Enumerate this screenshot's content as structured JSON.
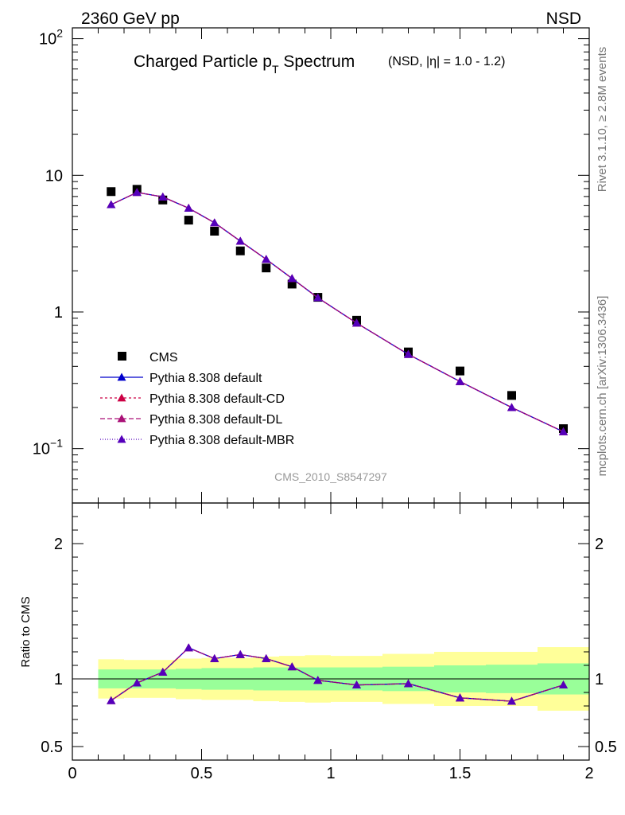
{
  "header": {
    "energy_label": "2360 GeV pp",
    "process_label": "NSD"
  },
  "side_labels": {
    "rivet": "Rivet 3.1.10, ≥ 2.8M events",
    "source": "mcplots.cern.ch [arXiv:1306.3436]"
  },
  "chart_data": {
    "type": "scatter",
    "title_main": "Charged Particle p",
    "title_sub": "T",
    "title_main2": " Spectrum",
    "title_note": "(NSD, |η| = 1.0 - 1.2)",
    "analysis_id": "CMS_2010_S8547297",
    "x": [
      0.15,
      0.25,
      0.35,
      0.45,
      0.55,
      0.65,
      0.75,
      0.85,
      0.95,
      1.1,
      1.3,
      1.5,
      1.7,
      1.9
    ],
    "xlim": [
      0,
      2
    ],
    "xticks": [
      {
        "v": 0,
        "label": "0"
      },
      {
        "v": 0.5,
        "label": "0.5"
      },
      {
        "v": 1,
        "label": "1"
      },
      {
        "v": 1.5,
        "label": "1.5"
      },
      {
        "v": 2,
        "label": "2"
      }
    ],
    "main_panel": {
      "yscale": "log",
      "ylim": [
        0.04,
        120
      ],
      "yticks": [
        {
          "v": 0.1,
          "base": "10",
          "exp": "−1"
        },
        {
          "v": 1,
          "base": "1",
          "exp": ""
        },
        {
          "v": 10,
          "base": "10",
          "exp": ""
        },
        {
          "v": 100,
          "base": "10",
          "exp": "2"
        }
      ]
    },
    "ratio_panel": {
      "ylabel": "Ratio to CMS",
      "ylim": [
        0.4,
        2.3
      ],
      "yticks": [
        {
          "v": 0.5,
          "label": "0.5"
        },
        {
          "v": 1,
          "label": "1"
        },
        {
          "v": 2,
          "label": "2"
        }
      ],
      "bands": {
        "x_edges": [
          0.1,
          0.2,
          0.3,
          0.4,
          0.5,
          0.6,
          0.7,
          0.8,
          0.9,
          1.0,
          1.2,
          1.4,
          1.6,
          1.8,
          2.0
        ],
        "inner_lo": [
          0.93,
          0.93,
          0.93,
          0.925,
          0.92,
          0.92,
          0.915,
          0.915,
          0.915,
          0.915,
          0.91,
          0.9,
          0.895,
          0.885
        ],
        "inner_hi": [
          1.07,
          1.07,
          1.07,
          1.075,
          1.08,
          1.08,
          1.085,
          1.085,
          1.085,
          1.085,
          1.09,
          1.1,
          1.105,
          1.115
        ],
        "outer_lo": [
          0.855,
          0.86,
          0.86,
          0.85,
          0.845,
          0.845,
          0.835,
          0.83,
          0.825,
          0.83,
          0.815,
          0.8,
          0.8,
          0.765
        ],
        "outer_hi": [
          1.145,
          1.14,
          1.14,
          1.15,
          1.155,
          1.155,
          1.165,
          1.17,
          1.175,
          1.17,
          1.185,
          1.2,
          1.2,
          1.235
        ],
        "inner_color": "#99ff99",
        "outer_color": "#ffff99"
      }
    },
    "series": [
      {
        "name": "CMS",
        "role": "data",
        "marker": "square",
        "color": "#000000",
        "values": [
          7.6,
          7.9,
          6.6,
          4.7,
          3.9,
          2.8,
          2.1,
          1.6,
          1.28,
          0.87,
          0.51,
          0.37,
          0.245,
          0.14
        ],
        "ratio": [
          1,
          1,
          1,
          1,
          1,
          1,
          1,
          1,
          1,
          1,
          1,
          1,
          1,
          1
        ]
      },
      {
        "name": "Pythia 8.308 default",
        "marker": "triangle",
        "color": "#0000cc",
        "dash": "",
        "values": [
          6.1,
          7.5,
          6.95,
          5.75,
          4.5,
          3.3,
          2.43,
          1.76,
          1.27,
          0.83,
          0.49,
          0.31,
          0.2,
          0.133
        ],
        "ratio": [
          0.84,
          0.97,
          1.05,
          1.23,
          1.15,
          1.18,
          1.15,
          1.09,
          0.99,
          0.955,
          0.965,
          0.86,
          0.835,
          0.955
        ]
      },
      {
        "name": "Pythia 8.308 default-CD",
        "marker": "triangle",
        "color": "#cc0044",
        "dash": "3,3",
        "values": [
          6.1,
          7.5,
          6.95,
          5.75,
          4.5,
          3.3,
          2.43,
          1.76,
          1.27,
          0.83,
          0.49,
          0.31,
          0.2,
          0.133
        ],
        "ratio": [
          0.84,
          0.97,
          1.05,
          1.23,
          1.15,
          1.18,
          1.15,
          1.09,
          0.99,
          0.955,
          0.965,
          0.86,
          0.835,
          0.955
        ]
      },
      {
        "name": "Pythia 8.308 default-DL",
        "marker": "triangle",
        "color": "#aa1177",
        "dash": "6,3",
        "values": [
          6.1,
          7.5,
          6.95,
          5.75,
          4.5,
          3.3,
          2.43,
          1.76,
          1.27,
          0.83,
          0.49,
          0.31,
          0.2,
          0.133
        ],
        "ratio": [
          0.84,
          0.97,
          1.05,
          1.23,
          1.15,
          1.18,
          1.15,
          1.09,
          0.99,
          0.955,
          0.965,
          0.86,
          0.835,
          0.955
        ]
      },
      {
        "name": "Pythia 8.308 default-MBR",
        "marker": "triangle",
        "color": "#5500bb",
        "dash": "1,2",
        "values": [
          6.1,
          7.5,
          6.95,
          5.75,
          4.5,
          3.3,
          2.43,
          1.76,
          1.27,
          0.83,
          0.49,
          0.31,
          0.2,
          0.133
        ],
        "ratio": [
          0.84,
          0.97,
          1.05,
          1.23,
          1.15,
          1.18,
          1.15,
          1.09,
          0.99,
          0.955,
          0.965,
          0.86,
          0.835,
          0.955
        ]
      }
    ]
  }
}
